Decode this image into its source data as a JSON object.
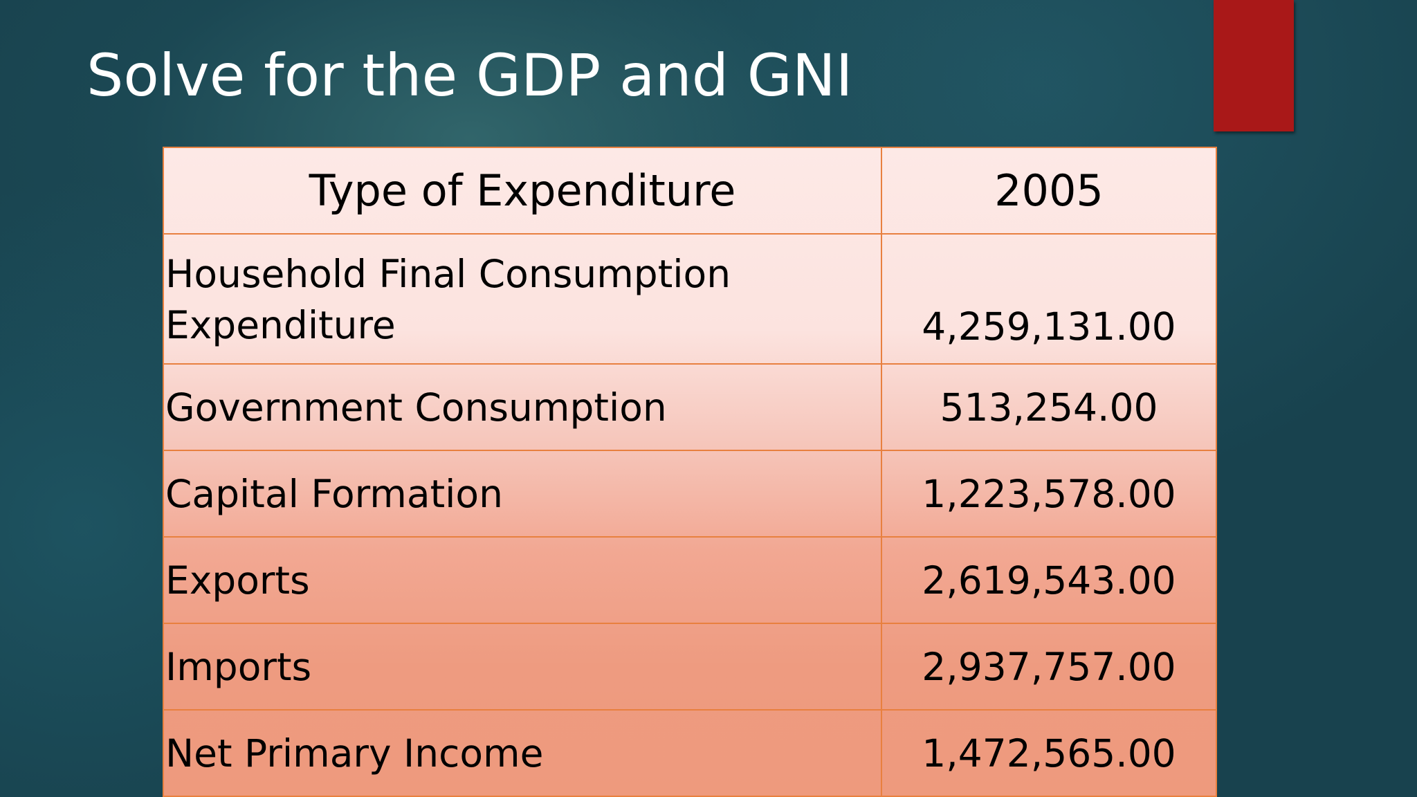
{
  "slide": {
    "title": "Solve for the GDP and GNI"
  },
  "table": {
    "headers": [
      "Type of Expenditure",
      "2005"
    ],
    "rows": [
      {
        "label": "Household Final Consumption Expenditure",
        "value": "4,259,131.00"
      },
      {
        "label": "Government Consumption",
        "value": "513,254.00"
      },
      {
        "label": "Capital Formation",
        "value": "1,223,578.00"
      },
      {
        "label": "Exports",
        "value": "2,619,543.00"
      },
      {
        "label": "Imports",
        "value": "2,937,757.00"
      },
      {
        "label": "Net Primary Income",
        "value": "1,472,565.00"
      }
    ]
  },
  "colors": {
    "background": "#18424e",
    "accent_bar": "#a91818",
    "table_border": "#e8803f",
    "table_top": "#fde9e6",
    "table_bottom": "#ee9a7d",
    "title_text": "#ffffff"
  }
}
